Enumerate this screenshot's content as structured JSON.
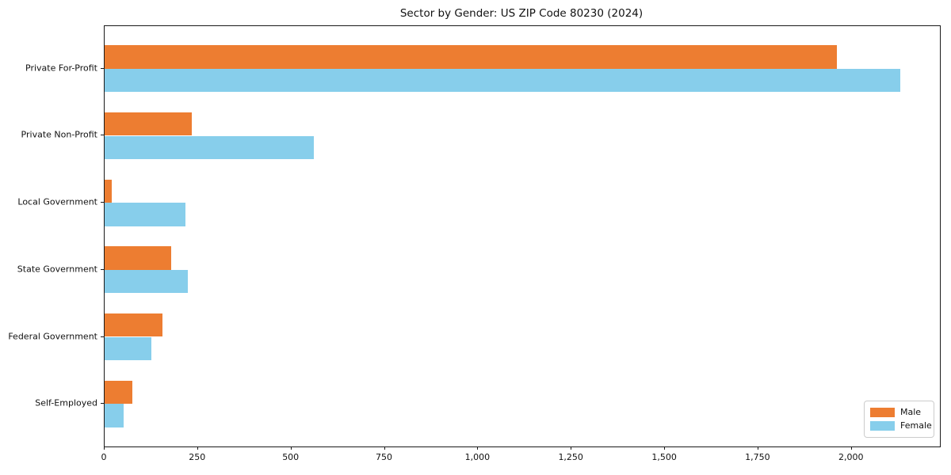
{
  "chart_data": {
    "type": "bar",
    "orientation": "horizontal",
    "title": "Sector by Gender: US ZIP Code 80230 (2024)",
    "categories": [
      "Private For-Profit",
      "Private Non-Profit",
      "Local Government",
      "State Government",
      "Federal Government",
      "Self-Employed"
    ],
    "series": [
      {
        "name": "Male",
        "color": "#ED7D31",
        "values": [
          1960,
          233,
          18,
          179,
          155,
          74
        ]
      },
      {
        "name": "Female",
        "color": "#87CEEB",
        "values": [
          2130,
          561,
          217,
          222,
          126,
          51
        ]
      }
    ],
    "xlabel": "",
    "ylabel": "",
    "xlim": [
      0,
      2236
    ],
    "xticks": [
      0,
      250,
      500,
      750,
      1000,
      1250,
      1500,
      1750,
      2000
    ],
    "xtick_labels": [
      "0",
      "250",
      "500",
      "750",
      "1,000",
      "1,250",
      "1,500",
      "1,750",
      "2,000"
    ],
    "grid": "off",
    "legend_position": "lower right"
  },
  "colors": {
    "spine": "#1a1a1a",
    "text": "#111111",
    "legend_border": "#cccccc",
    "background": "#ffffff"
  }
}
